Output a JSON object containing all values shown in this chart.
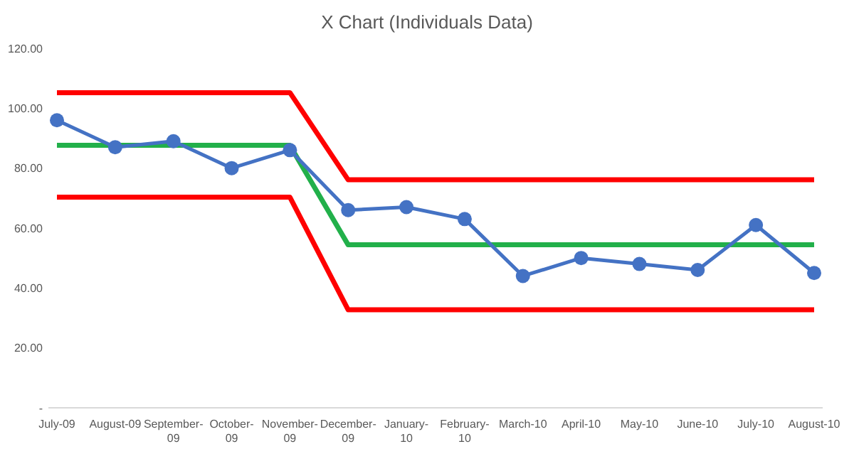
{
  "chart_data": {
    "type": "line",
    "title": "X Chart (Individuals Data)",
    "categories": [
      "July-09",
      "August-09",
      "September-09",
      "October-09",
      "November-09",
      "December-09",
      "January-10",
      "February-10",
      "March-10",
      "April-10",
      "May-10",
      "June-10",
      "July-10",
      "August-10"
    ],
    "ylim": [
      0,
      120
    ],
    "yticks": [
      {
        "value": 0,
        "label": "-"
      },
      {
        "value": 20,
        "label": "20.00"
      },
      {
        "value": 40,
        "label": "40.00"
      },
      {
        "value": 60,
        "label": "60.00"
      },
      {
        "value": 80,
        "label": "80.00"
      },
      {
        "value": 100,
        "label": "100.00"
      },
      {
        "value": 120,
        "label": "120.00"
      }
    ],
    "grid": false,
    "series": [
      {
        "color": "#ff0000",
        "marker": "none",
        "values": [
          105.2,
          105.2,
          105.2,
          105.2,
          105.2,
          76.1,
          76.1,
          76.1,
          76.1,
          76.1,
          76.1,
          76.1,
          76.1,
          76.1
        ]
      },
      {
        "color": "#ff0000",
        "marker": "none",
        "values": [
          70.3,
          70.3,
          70.3,
          70.3,
          70.3,
          32.7,
          32.7,
          32.7,
          32.7,
          32.7,
          32.7,
          32.7,
          32.7,
          32.7
        ]
      },
      {
        "color": "#22b04a",
        "marker": "none",
        "values": [
          87.6,
          87.6,
          87.6,
          87.6,
          87.6,
          54.4,
          54.4,
          54.4,
          54.4,
          54.4,
          54.4,
          54.4,
          54.4,
          54.4
        ]
      },
      {
        "color": "#4472c4",
        "marker": "circle",
        "values": [
          96,
          87,
          89,
          80,
          86,
          66,
          67,
          63,
          44,
          50,
          48,
          46,
          61,
          45
        ]
      }
    ]
  }
}
